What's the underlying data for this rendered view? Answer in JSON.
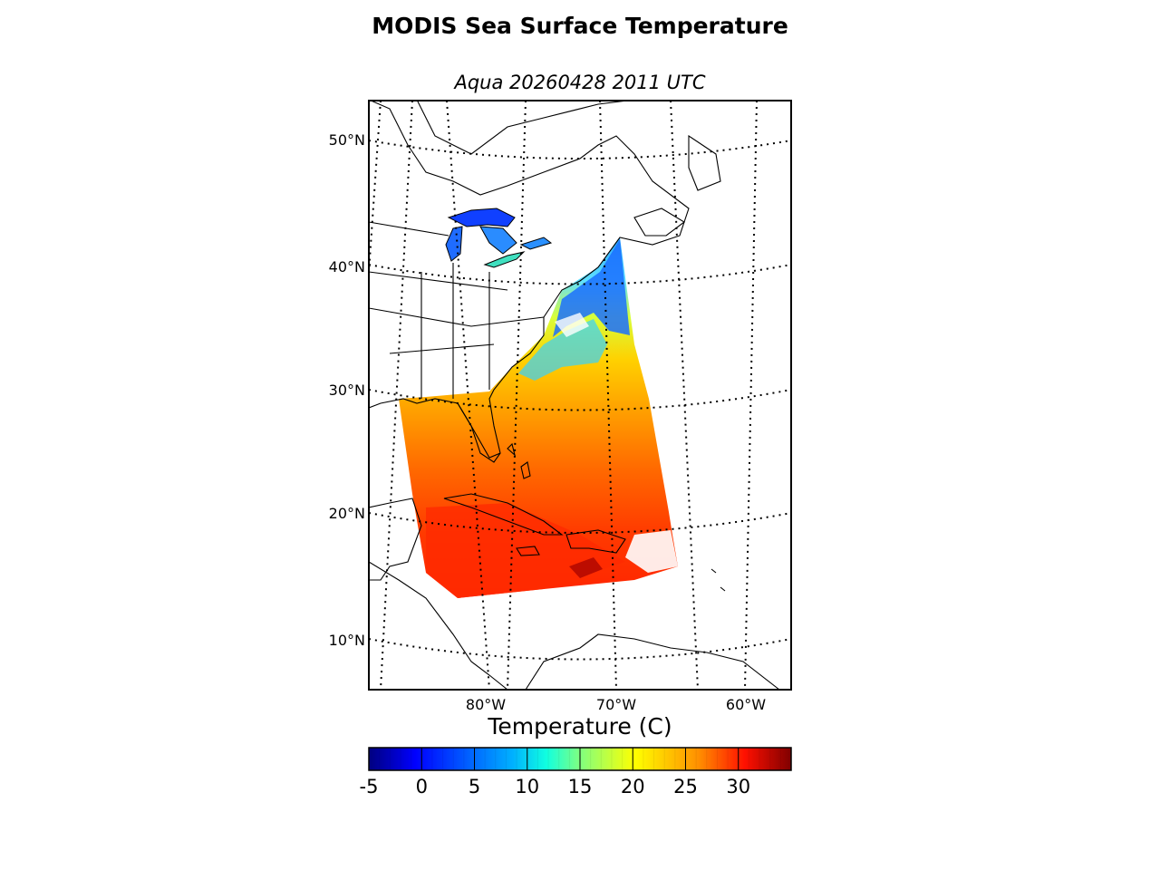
{
  "title": "MODIS Sea Surface Temperature",
  "subtitle": "Aqua 20260428 2011 UTC",
  "map": {
    "projection": "lambert-conformal",
    "parallels": [
      {
        "label": "50°N"
      },
      {
        "label": "40°N"
      },
      {
        "label": "30°N"
      },
      {
        "label": "20°N"
      },
      {
        "label": "10°N"
      }
    ],
    "meridians": [
      {
        "label": "80°W"
      },
      {
        "label": "70°W"
      },
      {
        "label": "60°W"
      }
    ],
    "grid": "dotted",
    "coastlines": true,
    "country_borders": true,
    "state_borders": true
  },
  "colorbar": {
    "title": "Temperature (C)",
    "colormap": "jet",
    "min": -5,
    "max": 35,
    "ticks": [
      "-5",
      "0",
      "5",
      "10",
      "15",
      "20",
      "25",
      "30"
    ],
    "colors": [
      "#00007f",
      "#0000ff",
      "#007fff",
      "#00ffff",
      "#7fff7f",
      "#ffff00",
      "#ff7f00",
      "#ff0000",
      "#7f0000"
    ]
  }
}
